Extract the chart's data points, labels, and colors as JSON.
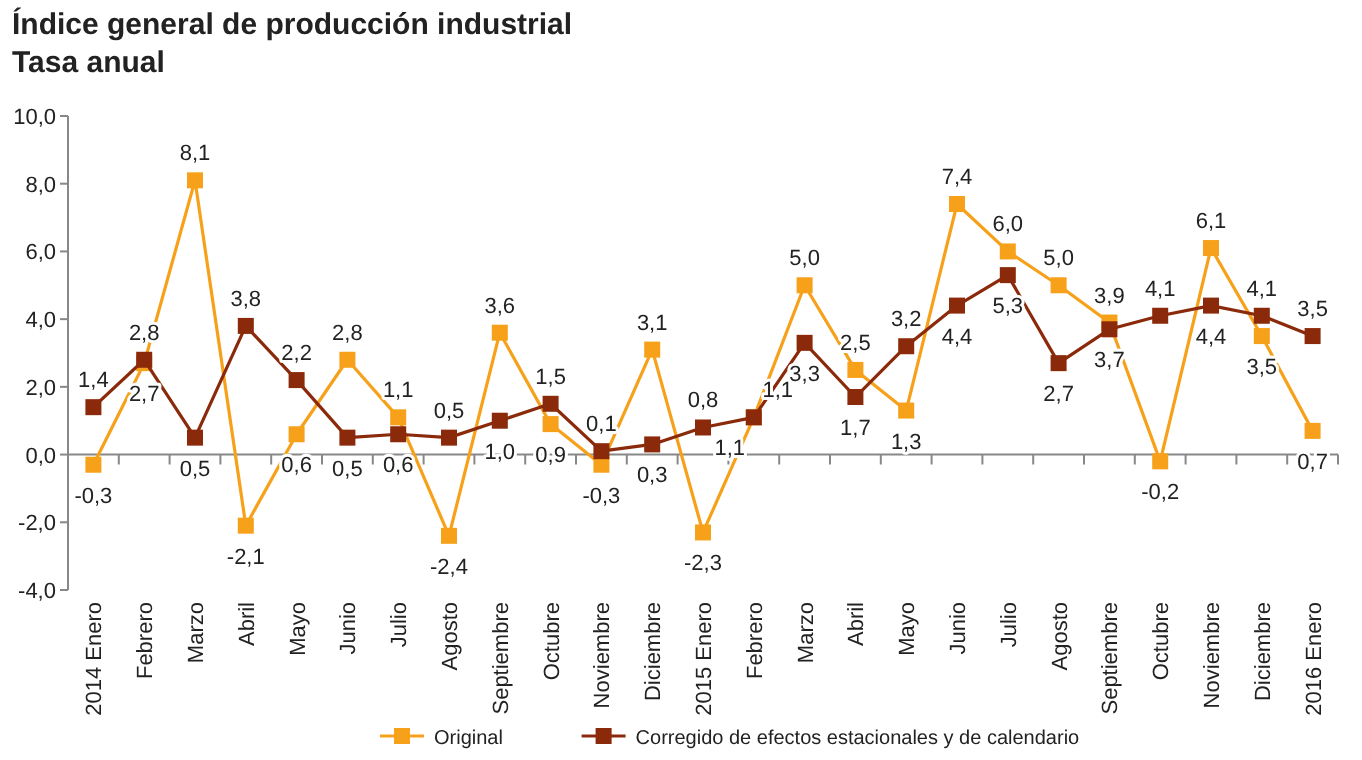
{
  "chart_data": {
    "type": "line",
    "title": "Índice general de producción industrial",
    "subtitle": "Tasa anual",
    "categories": [
      "2014 Enero",
      "Febrero",
      "Marzo",
      "Abril",
      "Mayo",
      "Junio",
      "Julio",
      "Agosto",
      "Septiembre",
      "Octubre",
      "Noviembre",
      "Diciembre",
      "2015 Enero",
      "Febrero",
      "Marzo",
      "Abril",
      "Mayo",
      "Junio",
      "Julio",
      "Agosto",
      "Septiembre",
      "Octubre",
      "Noviembre",
      "Diciembre",
      "2016 Enero"
    ],
    "series": [
      {
        "name": "Original",
        "color": "#f7a11a",
        "values": [
          -0.3,
          2.7,
          8.1,
          -2.1,
          0.6,
          2.8,
          1.1,
          -2.4,
          3.6,
          0.9,
          -0.3,
          3.1,
          -2.3,
          1.1,
          5.0,
          2.5,
          1.3,
          7.4,
          6.0,
          5.0,
          3.9,
          -0.2,
          6.1,
          3.5,
          0.7
        ],
        "value_labels": [
          "-0,3",
          "2,7",
          "8,1",
          "-2,1",
          "0,6",
          "2,8",
          "1,1",
          "-2,4",
          "3,6",
          "0,9",
          "-0,3",
          "3,1",
          "-2,3",
          "1,1",
          "5,0",
          "2,5",
          "1,3",
          "7,4",
          "6,0",
          "5,0",
          "3,9",
          "-0,2",
          "6,1",
          "3,5",
          "0,7"
        ]
      },
      {
        "name": "Corregido de efectos estacionales y de calendario",
        "color": "#8b2a0a",
        "values": [
          1.4,
          2.8,
          0.5,
          3.8,
          2.2,
          0.5,
          0.6,
          0.5,
          1.0,
          1.5,
          0.1,
          0.3,
          0.8,
          1.1,
          3.3,
          1.7,
          3.2,
          4.4,
          5.3,
          2.7,
          3.7,
          4.1,
          4.4,
          4.1,
          3.5
        ],
        "value_labels": [
          "1,4",
          "2,8",
          "0,5",
          "3,8",
          "2,2",
          "0,5",
          "0,6",
          "0,5",
          "1,0",
          "1,5",
          "0,1",
          "0,3",
          "0,8",
          "1,1",
          "3,3",
          "1,7",
          "3,2",
          "4,4",
          "5,3",
          "2,7",
          "3,7",
          "4,1",
          "4,4",
          "4,1",
          "3,5"
        ]
      }
    ],
    "ylim": [
      -4,
      10
    ],
    "yticks": [
      {
        "value": -4,
        "label": "-4,0"
      },
      {
        "value": -2,
        "label": "-2,0"
      },
      {
        "value": 0,
        "label": "0,0"
      },
      {
        "value": 2,
        "label": "2,0"
      },
      {
        "value": 4,
        "label": "4,0"
      },
      {
        "value": 6,
        "label": "6,0"
      },
      {
        "value": 8,
        "label": "8,0"
      },
      {
        "value": 10,
        "label": "10,0"
      }
    ],
    "legend": "bottom",
    "marker": "square",
    "line_style": "solid"
  }
}
